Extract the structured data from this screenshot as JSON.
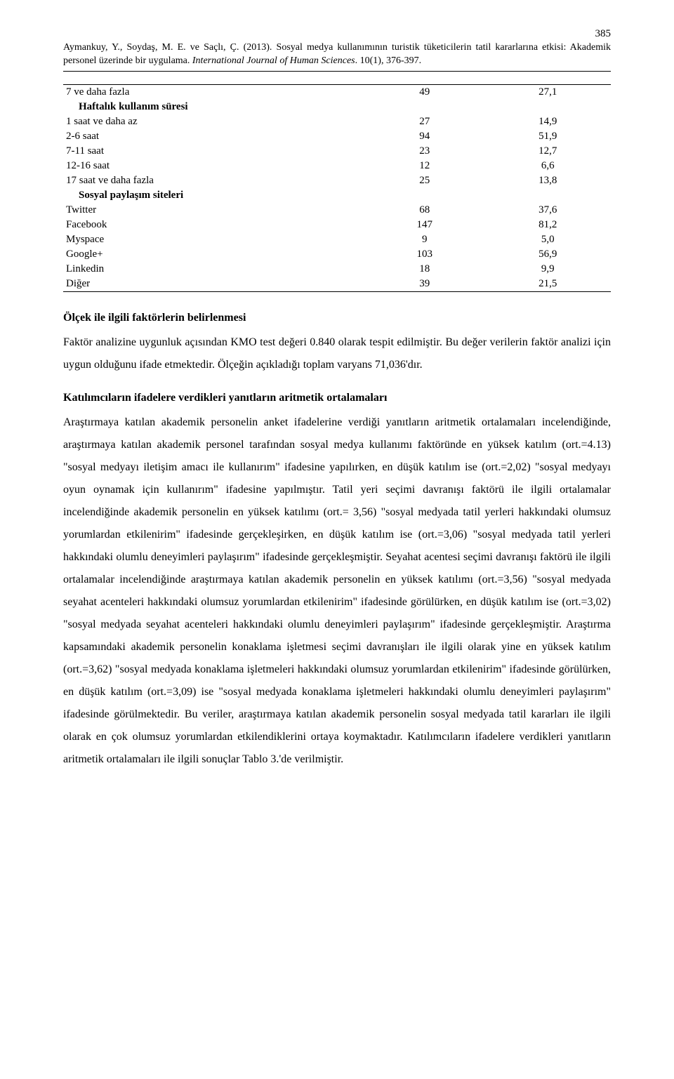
{
  "page_number": "385",
  "citation": {
    "authors_year": "Aymankuy, Y., Soydaş, M. E. ve Saçlı, Ç. (2013). ",
    "title": "Sosyal medya kullanımının turistik tüketicilerin tatil kararlarına etkisi: Akademik personel üzerinde bir uygulama. ",
    "journal": "International Journal of Human Sciences",
    "vol_pages": ". 10(1), 376-397."
  },
  "table": {
    "sections": [
      {
        "header": null,
        "rows": [
          {
            "label": "7 ve daha fazla",
            "n": "49",
            "v": "27,1"
          }
        ]
      },
      {
        "header": "Haftalık kullanım süresi",
        "rows": [
          {
            "label": "1 saat ve daha az",
            "n": "27",
            "v": "14,9"
          },
          {
            "label": "2-6 saat",
            "n": "94",
            "v": "51,9"
          },
          {
            "label": "7-11 saat",
            "n": "23",
            "v": "12,7"
          },
          {
            "label": "12-16 saat",
            "n": "12",
            "v": "6,6"
          },
          {
            "label": "17 saat ve daha fazla",
            "n": "25",
            "v": "13,8"
          }
        ]
      },
      {
        "header": "Sosyal paylaşım siteleri",
        "rows": [
          {
            "label": "Twitter",
            "n": "68",
            "v": "37,6"
          },
          {
            "label": "Facebook",
            "n": "147",
            "v": "81,2"
          },
          {
            "label": "Myspace",
            "n": "9",
            "v": "5,0"
          },
          {
            "label": "Google+",
            "n": "103",
            "v": "56,9"
          },
          {
            "label": "Linkedin",
            "n": "18",
            "v": "9,9"
          },
          {
            "label": "Diğer",
            "n": "39",
            "v": "21,5"
          }
        ]
      }
    ]
  },
  "section1": {
    "heading": "Ölçek ile ilgili faktörlerin belirlenmesi",
    "body": "Faktör analizine uygunluk açısından KMO test değeri 0.840 olarak tespit edilmiştir. Bu değer verilerin faktör analizi için uygun olduğunu ifade etmektedir. Ölçeğin açıkladığı toplam varyans 71,036'dır."
  },
  "section2": {
    "heading": "Katılımcıların ifadelere verdikleri yanıtların aritmetik ortalamaları",
    "body": "Araştırmaya katılan akademik personelin anket ifadelerine verdiği yanıtların aritmetik ortalamaları incelendiğinde, araştırmaya katılan akademik personel tarafından sosyal medya kullanımı faktöründe en yüksek katılım (ort.=4.13) \"sosyal medyayı iletişim amacı ile kullanırım\" ifadesine yapılırken, en düşük katılım ise (ort.=2,02) \"sosyal medyayı oyun oynamak için kullanırım\" ifadesine yapılmıştır. Tatil yeri seçimi davranışı faktörü ile ilgili ortalamalar incelendiğinde akademik personelin en yüksek katılımı (ort.= 3,56) \"sosyal medyada tatil yerleri hakkındaki olumsuz yorumlardan etkilenirim\" ifadesinde gerçekleşirken, en düşük katılım ise (ort.=3,06) \"sosyal medyada tatil yerleri hakkındaki olumlu deneyimleri paylaşırım\" ifadesinde gerçekleşmiştir. Seyahat acentesi seçimi davranışı faktörü ile ilgili ortalamalar incelendiğinde araştırmaya katılan akademik personelin en yüksek katılımı (ort.=3,56) \"sosyal medyada seyahat acenteleri hakkındaki olumsuz yorumlardan etkilenirim\" ifadesinde görülürken,  en düşük katılım ise (ort.=3,02) \"sosyal medyada seyahat acenteleri hakkındaki olumlu deneyimleri paylaşırım\" ifadesinde gerçekleşmiştir. Araştırma kapsamındaki akademik personelin konaklama işletmesi seçimi davranışları ile ilgili olarak yine en yüksek katılım (ort.=3,62) \"sosyal medyada konaklama işletmeleri hakkındaki olumsuz yorumlardan etkilenirim\" ifadesinde görülürken, en düşük katılım (ort.=3,09) ise \"sosyal medyada konaklama işletmeleri hakkındaki olumlu deneyimleri paylaşırım\" ifadesinde görülmektedir. Bu veriler, araştırmaya katılan akademik personelin sosyal medyada tatil kararları ile ilgili olarak en çok olumsuz yorumlardan etkilendiklerini ortaya koymaktadır. Katılımcıların ifadelere verdikleri yanıtların aritmetik ortalamaları ile ilgili sonuçlar Tablo 3.'de verilmiştir."
  }
}
